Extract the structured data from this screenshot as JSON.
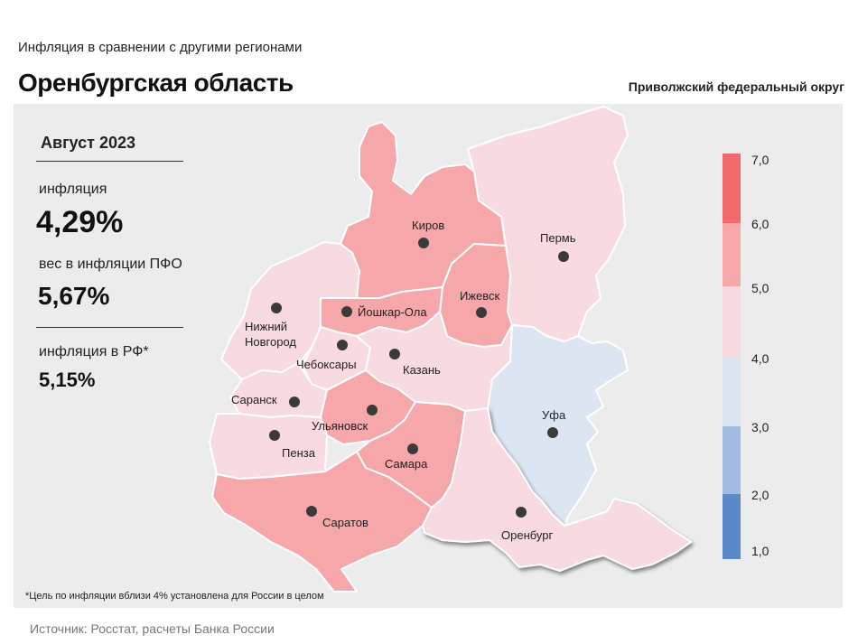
{
  "header": {
    "subtitle": "Инфляция  в сравнении  с другими  регионами",
    "title": "Оренбургская область",
    "district": "Приволжский федеральный округ"
  },
  "stats": {
    "period": "Август 2023",
    "inflation_label": "инфляция",
    "inflation_value": "4,29%",
    "weight_label": "вес в инфляции  ПФО",
    "weight_value": "5,67%",
    "rf_label": "инфляция  в РФ*",
    "rf_value": "5,15%"
  },
  "footnote": "*Цель по инфляции вблизи 4% установлена для России в целом",
  "source": "Источник: Росстат, расчеты Банка России",
  "legend": {
    "ticks": [
      "7,0",
      "6,0",
      "5,0",
      "4,0",
      "3,0",
      "2,0",
      "1,0"
    ],
    "colors": [
      "#f26a6c",
      "#f5a7aa",
      "#f8dbe0",
      "#dce6f3",
      "#a1bce0",
      "#5b89c8"
    ]
  },
  "cities": {
    "kirov": "Киров",
    "perm": "Пермь",
    "izhevsk": "Ижевск",
    "nizhny_line1": "Нижний",
    "nizhny_line2": "Новгород",
    "yoshkar": "Йошкар-Ола",
    "cheboksary": "Чебоксары",
    "kazan": "Казань",
    "saransk": "Саранск",
    "ulyanovsk": "Ульяновск",
    "ufa": "Уфа",
    "penza": "Пенза",
    "samara": "Самара",
    "saratov": "Саратов",
    "orenburg": "Оренбург"
  },
  "region_colors": {
    "high": "#f5a7aa",
    "mid": "#f8dbe0",
    "low": "#dce6f3",
    "border": "#ffffff"
  }
}
